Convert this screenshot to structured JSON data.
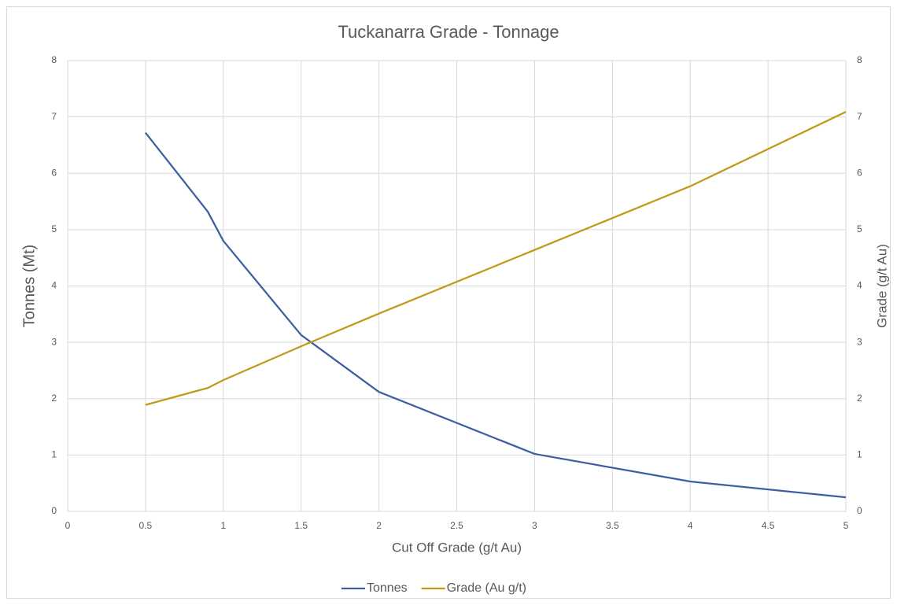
{
  "chart_data": {
    "type": "line",
    "title": "Tuckanarra Grade - Tonnage",
    "x_label": "Cut Off Grade (g/t Au)",
    "y_label": "Tonnes (Mt)",
    "y2_label": "Grade (g/t Au)",
    "x": [
      0.5,
      0.9,
      1,
      1.5,
      2,
      3,
      4,
      5
    ],
    "series": [
      {
        "name": "Tonnes",
        "color": "#3c5fa0",
        "values": [
          6.72,
          5.32,
          4.8,
          3.13,
          2.12,
          1.02,
          0.53,
          0.25
        ]
      },
      {
        "name": "Grade (Au g/t)",
        "color": "#c09a17",
        "axis": "y2",
        "values": [
          1.89,
          2.19,
          2.33,
          2.93,
          3.51,
          4.64,
          5.77,
          7.09
        ]
      }
    ],
    "xlim": [
      0,
      5
    ],
    "xticks": [
      0,
      0.5,
      1,
      1.5,
      2,
      2.5,
      3,
      3.5,
      4,
      4.5,
      5
    ],
    "ylim": [
      0,
      8
    ],
    "yticks": [
      0,
      1,
      2,
      3,
      4,
      5,
      6,
      7,
      8
    ],
    "y2lim": [
      0,
      8
    ],
    "y2ticks": [
      0,
      1,
      2,
      3,
      4,
      5,
      6,
      7,
      8
    ],
    "grid": true,
    "legend": "bottom"
  }
}
